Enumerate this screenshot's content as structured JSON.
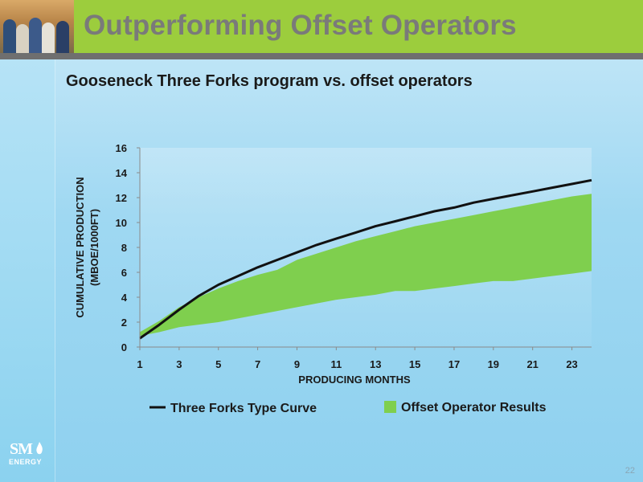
{
  "header": {
    "title": "Outperforming Offset Operators"
  },
  "subtitle": "Gooseneck Three Forks program vs. offset operators",
  "colors": {
    "header_green": "#9ccd3d",
    "header_bar": "#6f6f6f",
    "band_green": "#7fcf4e",
    "curve_black": "#111111"
  },
  "logo": {
    "name": "SM",
    "sub": "ENERGY"
  },
  "page_number": "22",
  "chart_data": {
    "type": "line",
    "xlabel": "PRODUCING MONTHS",
    "ylabel_line1": "CUMULATIVE PRODUCTION",
    "ylabel_line2": "(MBOE/1000FT)",
    "xlim": [
      1,
      24
    ],
    "ylim": [
      0,
      16
    ],
    "x_ticks": [
      1,
      3,
      5,
      7,
      9,
      11,
      13,
      15,
      17,
      19,
      21,
      23
    ],
    "y_ticks": [
      0,
      2,
      4,
      6,
      8,
      10,
      12,
      14,
      16
    ],
    "grid": false,
    "legend_position": "bottom",
    "series": [
      {
        "name": "Three Forks Type Curve",
        "kind": "line",
        "x": [
          1,
          2,
          3,
          4,
          5,
          6,
          7,
          8,
          9,
          10,
          11,
          12,
          13,
          14,
          15,
          16,
          17,
          18,
          19,
          20,
          21,
          22,
          23,
          24
        ],
        "values": [
          0.7,
          1.8,
          3.0,
          4.1,
          5.0,
          5.7,
          6.4,
          7.0,
          7.6,
          8.2,
          8.7,
          9.2,
          9.7,
          10.1,
          10.5,
          10.9,
          11.2,
          11.6,
          11.9,
          12.2,
          12.5,
          12.8,
          13.1,
          13.4
        ]
      },
      {
        "name": "Offset Operator Results",
        "kind": "band",
        "x": [
          1,
          2,
          3,
          4,
          5,
          6,
          7,
          8,
          9,
          10,
          11,
          12,
          13,
          14,
          15,
          16,
          17,
          18,
          19,
          20,
          21,
          22,
          23,
          24
        ],
        "lower": [
          0.9,
          1.2,
          1.6,
          1.8,
          2.0,
          2.3,
          2.6,
          2.9,
          3.2,
          3.5,
          3.8,
          4.0,
          4.2,
          4.5,
          4.5,
          4.7,
          4.9,
          5.1,
          5.3,
          5.3,
          5.5,
          5.7,
          5.9,
          6.1
        ],
        "upper": [
          1.2,
          2.1,
          3.2,
          4.0,
          4.7,
          5.3,
          5.8,
          6.2,
          7.0,
          7.5,
          8.0,
          8.5,
          8.9,
          9.3,
          9.7,
          10.0,
          10.3,
          10.6,
          10.9,
          11.2,
          11.5,
          11.8,
          12.1,
          12.3
        ]
      }
    ]
  }
}
